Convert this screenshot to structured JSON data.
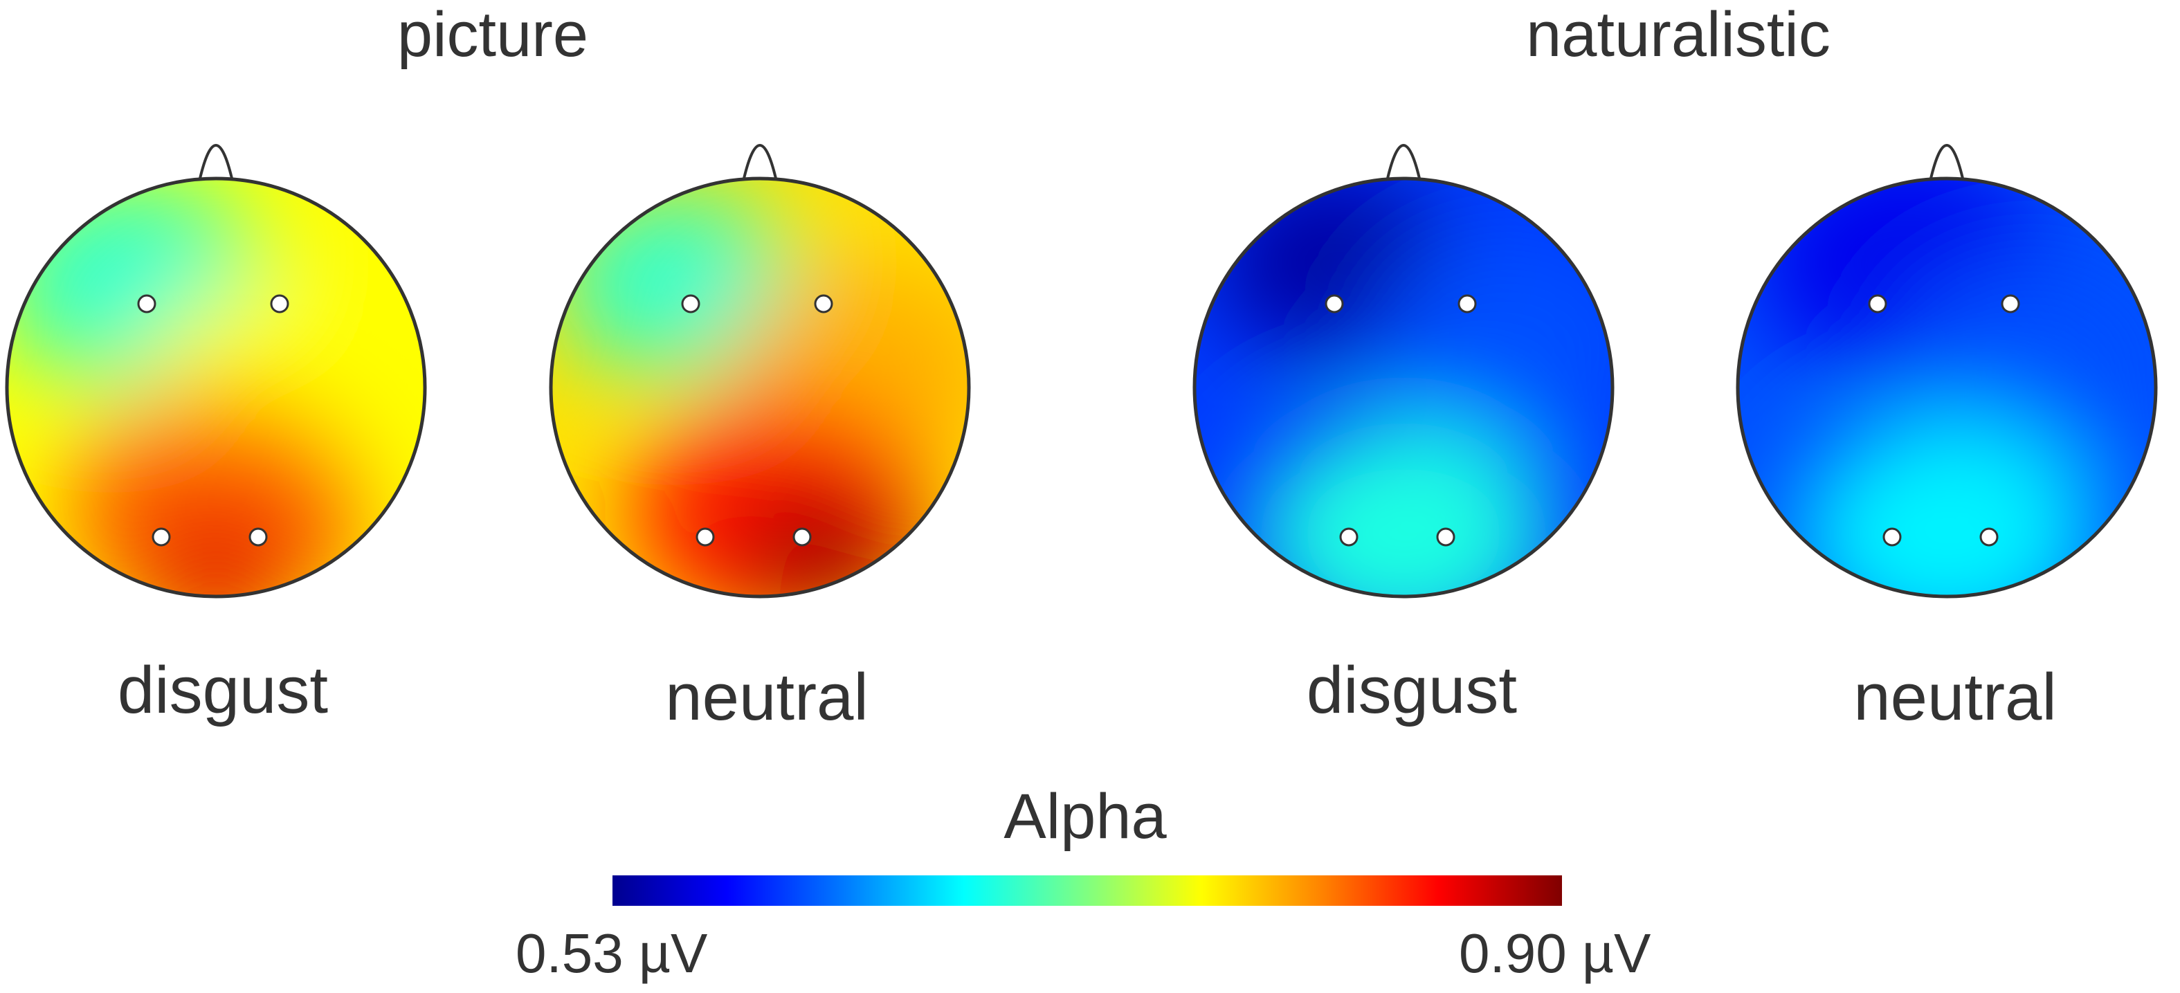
{
  "groups": [
    {
      "title": "picture",
      "maps": [
        {
          "condition": "disgust",
          "blobs": [
            {
              "level": 0.42,
              "fx": 0.3,
              "fy": 0.25,
              "r": 0.5
            },
            {
              "level": 0.62,
              "fx": 0.65,
              "fy": 0.5,
              "r": 0.5
            },
            {
              "level": 0.78,
              "fx": 0.5,
              "fy": 0.8,
              "r": 0.55
            },
            {
              "level": 0.9,
              "fx": 0.5,
              "fy": 0.95,
              "r": 0.3
            }
          ],
          "base": 0.62
        },
        {
          "condition": "neutral",
          "blobs": [
            {
              "level": 0.42,
              "fx": 0.3,
              "fy": 0.25,
              "r": 0.45
            },
            {
              "level": 0.7,
              "fx": 0.75,
              "fy": 0.45,
              "r": 0.5
            },
            {
              "level": 0.85,
              "fx": 0.55,
              "fy": 0.8,
              "r": 0.55
            },
            {
              "level": 0.97,
              "fx": 0.65,
              "fy": 0.9,
              "r": 0.3
            }
          ],
          "base": 0.65
        }
      ]
    },
    {
      "title": "naturalistic",
      "maps": [
        {
          "condition": "disgust",
          "blobs": [
            {
              "level": 0.02,
              "fx": 0.33,
              "fy": 0.2,
              "r": 0.45
            },
            {
              "level": 0.2,
              "fx": 0.75,
              "fy": 0.4,
              "r": 0.5
            },
            {
              "level": 0.4,
              "fx": 0.5,
              "fy": 0.85,
              "r": 0.55
            }
          ],
          "base": 0.18
        },
        {
          "condition": "neutral",
          "blobs": [
            {
              "level": 0.1,
              "fx": 0.4,
              "fy": 0.2,
              "r": 0.55
            },
            {
              "level": 0.2,
              "fx": 0.7,
              "fy": 0.45,
              "r": 0.5
            },
            {
              "level": 0.36,
              "fx": 0.5,
              "fy": 0.85,
              "r": 0.55
            }
          ],
          "base": 0.2
        }
      ]
    }
  ],
  "colorbar": {
    "title": "Alpha",
    "min_label": "0.53 µV",
    "max_label": "0.90 µV",
    "min_value": 0.53,
    "max_value": 0.9,
    "colormap": "jet"
  },
  "colors": {
    "outline": "#333333",
    "electrode_fill": "#ffffff"
  }
}
